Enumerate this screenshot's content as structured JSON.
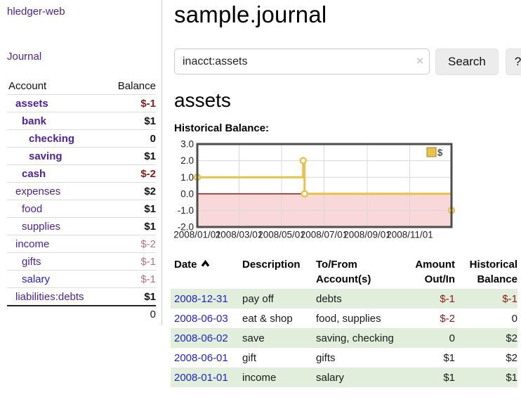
{
  "app": {
    "brand": "hledger-web",
    "nav": {
      "journal": "Journal"
    }
  },
  "sidebar": {
    "header": {
      "account": "Account",
      "balance": "Balance"
    },
    "rows": [
      {
        "name": "assets",
        "balance": "$-1"
      },
      {
        "name": "bank",
        "balance": "$1"
      },
      {
        "name": "checking",
        "balance": "0"
      },
      {
        "name": "saving",
        "balance": "$1"
      },
      {
        "name": "cash",
        "balance": "$-2"
      },
      {
        "name": "expenses",
        "balance": "$2"
      },
      {
        "name": "food",
        "balance": "$1"
      },
      {
        "name": "supplies",
        "balance": "$1"
      },
      {
        "name": "income",
        "balance": "$-2"
      },
      {
        "name": "gifts",
        "balance": "$-1"
      },
      {
        "name": "salary",
        "balance": "$-1"
      },
      {
        "name": "liabilities:debts",
        "balance": "$1"
      }
    ],
    "total": "0"
  },
  "main": {
    "title": "sample.journal",
    "search": {
      "value": "inacct:assets",
      "clear_icon": "×",
      "button": "Search",
      "help": "?"
    },
    "account_heading": "assets",
    "chart_heading": "Historical Balance:"
  },
  "chart_data": {
    "type": "line",
    "step": true,
    "title": "Historical Balance",
    "legend": "$",
    "series": [
      {
        "name": "$",
        "points": [
          [
            "2008-01-01",
            1
          ],
          [
            "2008-06-01",
            2
          ],
          [
            "2008-06-03",
            0
          ],
          [
            "2008-12-31",
            -1
          ]
        ]
      }
    ],
    "x_range": [
      "2008-01-01",
      "2008-12-31"
    ],
    "x_tick_labels": [
      "2008/01/01",
      "2008/03/01",
      "2008/05/01",
      "2008/07/01",
      "2008/09/01",
      "2008/11/01"
    ],
    "y_ticks": [
      3,
      2,
      1,
      0,
      -1,
      -2
    ],
    "ylim": [
      -2,
      3
    ],
    "legend_position": "top-right",
    "colors": {
      "line": "#e9c14d",
      "marker_fill": "#ffffff",
      "negative_area": "#f8d8d8",
      "zero_line": "#a00000",
      "grid": "#d9d9d9",
      "border": "#4d4d4d",
      "legend_box_border": "#a8851d"
    }
  },
  "table": {
    "headers": {
      "date": "Date",
      "description": "Description",
      "account": "To/From Account(s)",
      "amount": "Amount Out/In",
      "balance": "Historical Balance"
    },
    "rows": [
      {
        "date": "2008-12-31",
        "description": "pay off",
        "account": "debts",
        "amount": "$-1",
        "balance": "$-1"
      },
      {
        "date": "2008-06-03",
        "description": "eat & shop",
        "account": "food, supplies",
        "amount": "$-2",
        "balance": "0"
      },
      {
        "date": "2008-06-02",
        "description": "save",
        "account": "saving, checking",
        "amount": "0",
        "balance": "$2"
      },
      {
        "date": "2008-06-01",
        "description": "gift",
        "account": "gifts",
        "amount": "$1",
        "balance": "$2"
      },
      {
        "date": "2008-01-01",
        "description": "income",
        "account": "salary",
        "amount": "$1",
        "balance": "$1"
      }
    ]
  }
}
